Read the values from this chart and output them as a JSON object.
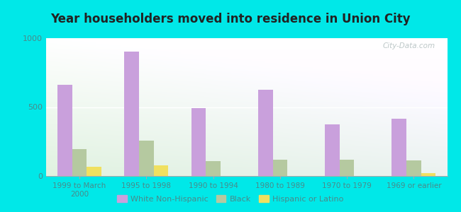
{
  "title": "Year householders moved into residence in Union City",
  "categories": [
    "1999 to March\n2000",
    "1995 to 1998",
    "1990 to 1994",
    "1980 to 1989",
    "1970 to 1979",
    "1969 or earlier"
  ],
  "white_non_hispanic": [
    660,
    900,
    490,
    625,
    375,
    415
  ],
  "black": [
    195,
    255,
    110,
    120,
    120,
    115
  ],
  "hispanic_or_latino": [
    65,
    75,
    0,
    0,
    0,
    20
  ],
  "bar_colors": {
    "white": "#c9a0dc",
    "black": "#b5c9a0",
    "hispanic": "#f0e060"
  },
  "ylim": [
    0,
    1000
  ],
  "yticks": [
    0,
    500,
    1000
  ],
  "outer_bg_color": "#00e8e8",
  "watermark": "City-Data.com",
  "legend_labels": [
    "White Non-Hispanic",
    "Black",
    "Hispanic or Latino"
  ],
  "tick_color": "#4a8a8a",
  "title_color": "#222222"
}
